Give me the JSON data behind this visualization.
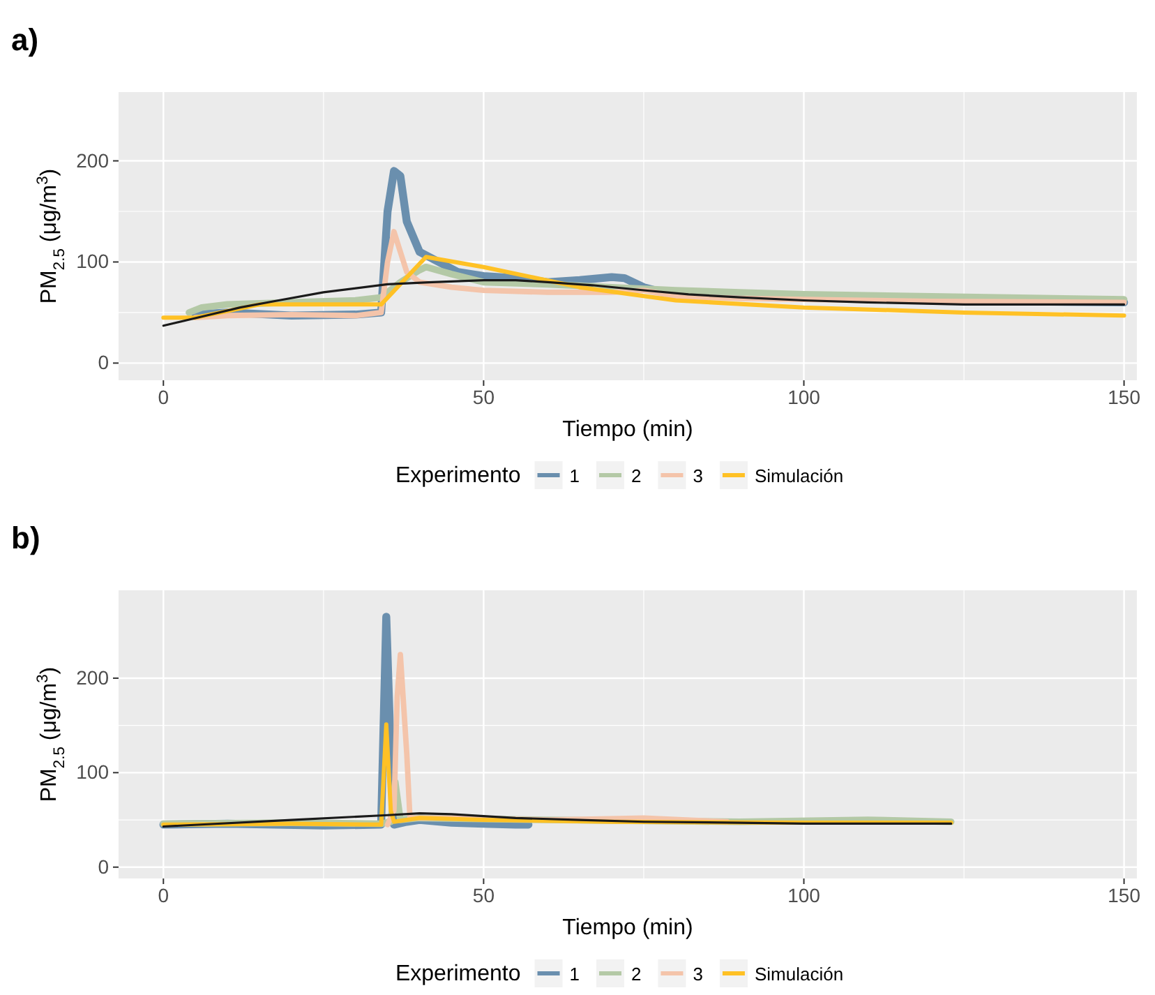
{
  "chart_data": [
    {
      "type": "line",
      "title": "a)",
      "xlabel": "Tiempo (min)",
      "ylabel": "PM$_{2.5}$ (μg/m$^{3}$)",
      "legend_title": "Experimento",
      "legend": "bottom",
      "grid": true,
      "xlim": [
        -7,
        152
      ],
      "xticks": [
        0,
        50,
        100,
        150
      ],
      "ylim": [
        -17,
        268
      ],
      "yticks": [
        0,
        100,
        200
      ],
      "series": [
        {
          "name": "1",
          "color": "#6a8fae",
          "x": [
            5,
            10,
            20,
            30,
            34,
            35,
            36,
            37,
            38,
            40,
            43,
            46,
            50,
            55,
            60,
            65,
            70,
            72,
            75,
            78,
            85,
            90,
            100,
            120,
            150
          ],
          "values": [
            48,
            50,
            47,
            48,
            50,
            150,
            190,
            185,
            140,
            110,
            100,
            90,
            86,
            84,
            80,
            82,
            85,
            84,
            75,
            70,
            68,
            67,
            65,
            62,
            60
          ]
        },
        {
          "name": "2",
          "color": "#b4c9a6",
          "x": [
            4,
            6,
            10,
            20,
            30,
            34,
            37,
            40,
            41,
            45,
            50,
            60,
            70,
            80,
            90,
            100,
            120,
            150
          ],
          "values": [
            50,
            55,
            58,
            60,
            62,
            65,
            80,
            92,
            95,
            88,
            80,
            78,
            75,
            72,
            70,
            68,
            66,
            63
          ]
        },
        {
          "name": "3",
          "color": "#f4c4aa",
          "x": [
            5,
            10,
            20,
            30,
            34,
            35,
            36,
            37,
            38,
            40,
            45,
            50,
            60,
            70,
            75,
            80,
            90,
            100,
            120,
            150
          ],
          "values": [
            45,
            47,
            48,
            47,
            50,
            100,
            130,
            110,
            90,
            80,
            75,
            72,
            70,
            70,
            72,
            66,
            64,
            63,
            61,
            60
          ]
        },
        {
          "name": "Simulación",
          "color": "#ffc125",
          "x": [
            0,
            5,
            15,
            34,
            41,
            50,
            65,
            80,
            100,
            125,
            150
          ],
          "values": [
            45,
            45,
            58,
            58,
            105,
            95,
            75,
            62,
            55,
            50,
            47
          ]
        },
        {
          "color": "#1a1a1a",
          "x": [
            0,
            6,
            12,
            18,
            25,
            35,
            42,
            50,
            55,
            60,
            67,
            75,
            82,
            90,
            100,
            110,
            125,
            150
          ],
          "values": [
            37,
            46,
            55,
            62,
            70,
            78,
            80,
            82,
            82,
            80,
            77,
            72,
            68,
            65,
            62,
            60,
            58,
            58
          ]
        }
      ]
    },
    {
      "type": "line",
      "title": "b)",
      "xlabel": "Tiempo (min)",
      "ylabel": "PM$_{2.5}$ (μg/m$^{3}$)",
      "legend_title": "Experimento",
      "legend": "bottom",
      "grid": true,
      "xlim": [
        -7,
        152
      ],
      "xticks": [
        0,
        50,
        100,
        150
      ],
      "ylim": [
        -12,
        293
      ],
      "yticks": [
        0,
        100,
        200
      ],
      "series": [
        {
          "name": "1",
          "color": "#6a8fae",
          "x": [
            0,
            10,
            25,
            34,
            34.8,
            35.5,
            36,
            38,
            40,
            45,
            50,
            55,
            57
          ],
          "values": [
            45,
            46,
            44,
            45,
            265,
            120,
            45,
            48,
            50,
            47,
            46,
            45,
            45
          ]
        },
        {
          "name": "2",
          "color": "#b4c9a6",
          "x": [
            0,
            20,
            34,
            35.5,
            36.2,
            37,
            40,
            60,
            90,
            110,
            123
          ],
          "values": [
            46,
            47,
            46,
            48,
            90,
            50,
            52,
            50,
            48,
            50,
            48
          ]
        },
        {
          "name": "3",
          "color": "#f4c4aa",
          "x": [
            35,
            36,
            36.5,
            37,
            38,
            38.5,
            40,
            45,
            60,
            75,
            88
          ],
          "values": [
            45,
            60,
            180,
            225,
            120,
            52,
            52,
            52,
            50,
            52,
            48
          ]
        },
        {
          "name": "Simulación",
          "color": "#ffc125",
          "x": [
            0,
            20,
            34,
            34.8,
            35.5,
            36,
            40,
            50,
            70,
            100,
            123
          ],
          "values": [
            45,
            46,
            45,
            151,
            60,
            48,
            52,
            50,
            48,
            47,
            47
          ]
        },
        {
          "color": "#1a1a1a",
          "x": [
            0,
            20,
            35,
            40,
            45,
            55,
            65,
            75,
            90,
            100,
            123
          ],
          "values": [
            43,
            50,
            55,
            57,
            56,
            52,
            50,
            48,
            47,
            46,
            46
          ]
        }
      ]
    }
  ]
}
